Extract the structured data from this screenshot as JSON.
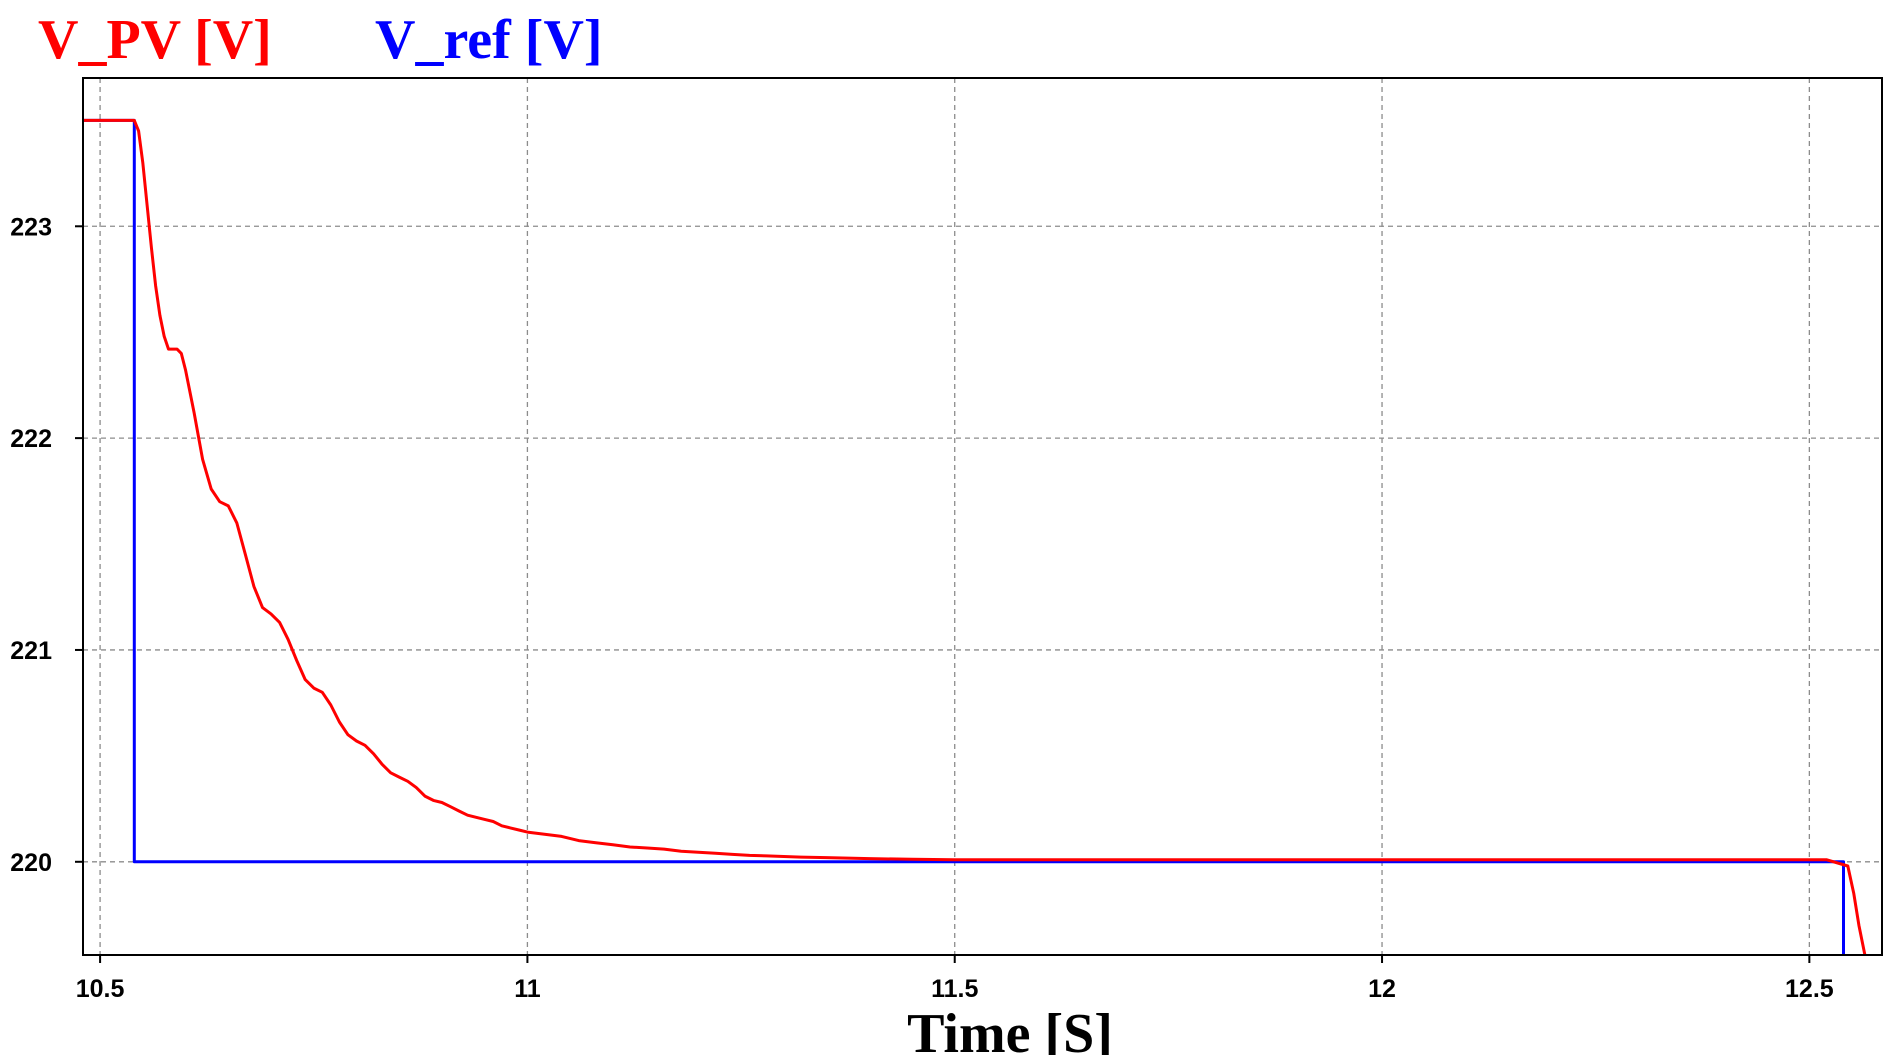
{
  "chart_data": {
    "type": "line",
    "title": "",
    "xlabel": "Time [S]",
    "ylabel": "",
    "xlim": [
      10.48,
      12.585
    ],
    "ylim": [
      219.56,
      223.7
    ],
    "xticks": [
      10.5,
      11,
      11.5,
      12,
      12.5
    ],
    "xtick_labels": [
      "10.5",
      "11",
      "11.5",
      "12",
      "12.5"
    ],
    "yticks": [
      220,
      221,
      222,
      223
    ],
    "ytick_labels": [
      "220",
      "221",
      "222",
      "223"
    ],
    "grid": true,
    "legend_position": "top-left",
    "series": [
      {
        "name": "V_PV [V]",
        "color": "#ff0000",
        "x": [
          10.48,
          10.54,
          10.545,
          10.55,
          10.555,
          10.56,
          10.565,
          10.57,
          10.575,
          10.58,
          10.585,
          10.59,
          10.595,
          10.6,
          10.61,
          10.62,
          10.63,
          10.64,
          10.65,
          10.66,
          10.67,
          10.68,
          10.69,
          10.7,
          10.71,
          10.72,
          10.73,
          10.74,
          10.75,
          10.76,
          10.77,
          10.78,
          10.79,
          10.8,
          10.81,
          10.82,
          10.83,
          10.84,
          10.85,
          10.86,
          10.87,
          10.88,
          10.89,
          10.9,
          10.91,
          10.92,
          10.93,
          10.94,
          10.95,
          10.96,
          10.97,
          10.98,
          10.99,
          11.0,
          11.02,
          11.04,
          11.06,
          11.08,
          11.1,
          11.12,
          11.14,
          11.16,
          11.18,
          11.2,
          11.22,
          11.24,
          11.26,
          11.28,
          11.3,
          11.32,
          11.35,
          11.4,
          11.45,
          11.5,
          11.6,
          11.8,
          12.0,
          12.2,
          12.4,
          12.52,
          12.545,
          12.552,
          12.558,
          12.565
        ],
        "y": [
          223.5,
          223.5,
          223.45,
          223.3,
          223.1,
          222.9,
          222.72,
          222.58,
          222.48,
          222.42,
          222.42,
          222.42,
          222.4,
          222.32,
          222.12,
          221.9,
          221.76,
          221.7,
          221.68,
          221.6,
          221.45,
          221.3,
          221.2,
          221.17,
          221.13,
          221.05,
          220.95,
          220.86,
          220.82,
          220.8,
          220.74,
          220.66,
          220.6,
          220.57,
          220.55,
          220.51,
          220.46,
          220.42,
          220.4,
          220.38,
          220.35,
          220.31,
          220.29,
          220.28,
          220.26,
          220.24,
          220.22,
          220.21,
          220.2,
          220.19,
          220.17,
          220.16,
          220.15,
          220.14,
          220.13,
          220.12,
          220.1,
          220.09,
          220.08,
          220.07,
          220.065,
          220.06,
          220.05,
          220.045,
          220.04,
          220.035,
          220.03,
          220.028,
          220.025,
          220.022,
          220.02,
          220.015,
          220.012,
          220.01,
          220.01,
          220.01,
          220.01,
          220.01,
          220.01,
          220.01,
          219.98,
          219.85,
          219.7,
          219.56
        ]
      },
      {
        "name": "V_ref [V]",
        "color": "#0000ff",
        "x": [
          10.48,
          10.54,
          10.54,
          12.54,
          12.54
        ],
        "y": [
          223.5,
          223.5,
          220.0,
          220.0,
          219.56
        ]
      }
    ]
  }
}
